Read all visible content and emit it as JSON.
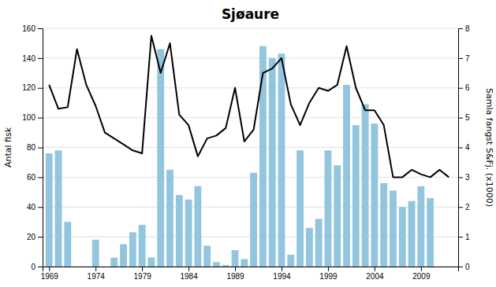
{
  "chart_data": {
    "type": "bar",
    "title": "Sjøaure",
    "ylabel": "Antal fisk",
    "y2label": "Samla fangst S&Fj. (x1000)",
    "x": [
      1969,
      1970,
      1971,
      1972,
      1973,
      1974,
      1975,
      1976,
      1977,
      1978,
      1979,
      1980,
      1981,
      1982,
      1983,
      1984,
      1985,
      1986,
      1987,
      1988,
      1989,
      1990,
      1991,
      1992,
      1993,
      1994,
      1995,
      1996,
      1997,
      1998,
      1999,
      2000,
      2001,
      2002,
      2003,
      2004,
      2005,
      2006,
      2007,
      2008,
      2009,
      2010,
      2011,
      2012
    ],
    "series": [
      {
        "type": "bar",
        "color": "#92C5DE",
        "values": [
          76,
          78,
          30,
          0,
          0,
          18,
          0,
          6,
          15,
          23,
          28,
          6,
          146,
          65,
          48,
          45,
          54,
          14,
          3,
          1,
          11,
          5,
          63,
          148,
          140,
          143,
          8,
          78,
          26,
          32,
          78,
          68,
          122,
          95,
          109,
          96,
          56,
          51,
          40,
          44,
          54,
          46,
          0,
          0
        ]
      },
      {
        "type": "line",
        "color": "#000000",
        "axis": "y2",
        "values": [
          6.1,
          5.3,
          5.35,
          7.3,
          6.1,
          5.4,
          4.5,
          4.3,
          4.1,
          3.9,
          3.8,
          7.75,
          6.5,
          7.5,
          5.1,
          4.75,
          3.7,
          4.3,
          4.4,
          4.65,
          6.0,
          4.2,
          4.6,
          6.5,
          6.65,
          7.0,
          5.45,
          4.75,
          5.5,
          6.0,
          5.9,
          6.1,
          7.4,
          6.0,
          5.25,
          5.25,
          4.75,
          3.0,
          3.0,
          3.25,
          3.1,
          3.0,
          3.25,
          3.0
        ]
      }
    ],
    "xlim": [
      1968.3,
      2013.0
    ],
    "xticks": [
      1969,
      1974,
      1979,
      1984,
      1989,
      1994,
      1999,
      2004,
      2009
    ],
    "ylim": [
      0,
      160
    ],
    "yticks": [
      0,
      20,
      40,
      60,
      80,
      100,
      120,
      140,
      160
    ],
    "y2lim": [
      0,
      8
    ],
    "y2ticks": [
      0,
      1,
      2,
      3,
      4,
      5,
      6,
      7,
      8
    ],
    "grid": true
  }
}
